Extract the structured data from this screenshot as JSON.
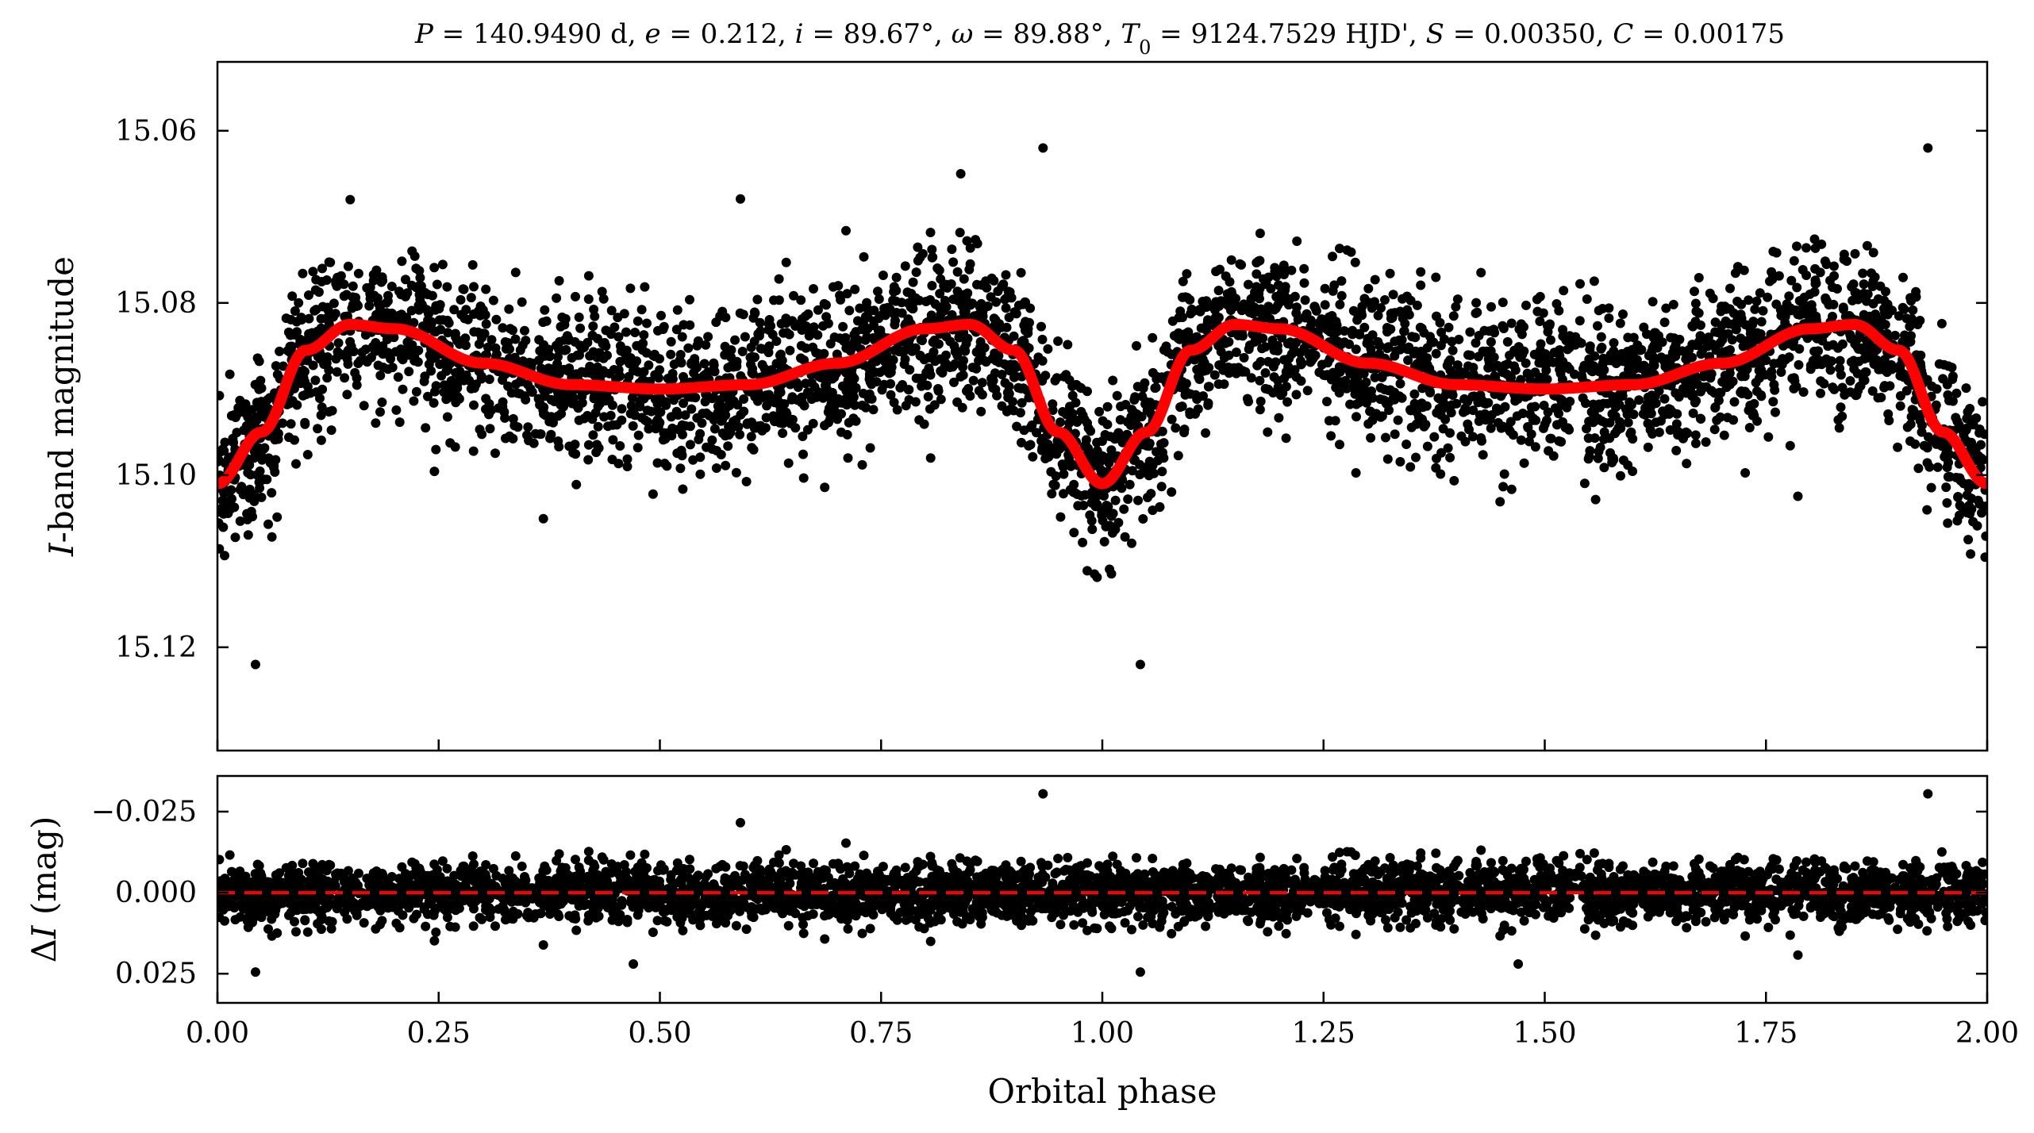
{
  "chart_data": [
    {
      "type": "scatter",
      "panel": "upper",
      "title": "P = 140.9490 d, e = 0.212, i = 89.67°, ω = 89.88°, T0 = 9124.7529 HJD', S = 0.00350, C = 0.00175",
      "title_parts": [
        {
          "text": "P",
          "style": "italic"
        },
        {
          "text": " = 140.9490 d, "
        },
        {
          "text": "e",
          "style": "italic"
        },
        {
          "text": " = 0.212, "
        },
        {
          "text": "i",
          "style": "italic"
        },
        {
          "text": " = 89.67°, "
        },
        {
          "text": "ω",
          "style": "italic"
        },
        {
          "text": " = 89.88°, "
        },
        {
          "text": "T",
          "style": "italic"
        },
        {
          "text": "0",
          "baseline": "sub"
        },
        {
          "text": " = 9124.7529 HJD', "
        },
        {
          "text": "S",
          "style": "italic"
        },
        {
          "text": " = 0.00350, "
        },
        {
          "text": "C",
          "style": "italic"
        },
        {
          "text": " = 0.00175"
        }
      ],
      "xlabel": "",
      "ylabel": "I-band magnitude",
      "ylabel_italic": "I",
      "ylabel_rest": "-band magnitude",
      "xlim": [
        0.0,
        2.0
      ],
      "ylim": [
        15.132,
        15.052
      ],
      "y_inverted": true,
      "yticks": [
        15.06,
        15.08,
        15.1,
        15.12
      ],
      "ytick_labels": [
        "15.06",
        "15.08",
        "15.10",
        "15.12"
      ],
      "xticks": [
        0.0,
        0.25,
        0.5,
        0.75,
        1.0,
        1.25,
        1.5,
        1.75,
        2.0
      ],
      "grid": false,
      "series": [
        {
          "kind": "points",
          "color": "#000000",
          "point_count": 4200,
          "baseline_mean": 15.088,
          "scatter_sd": 0.0045,
          "notable_points": [
            {
              "x": 0.933,
              "y": 15.062
            },
            {
              "x": 1.933,
              "y": 15.062
            },
            {
              "x": 0.043,
              "y": 15.122
            },
            {
              "x": 1.043,
              "y": 15.122
            },
            {
              "x": 0.15,
              "y": 15.068
            },
            {
              "x": 0.84,
              "y": 15.065
            }
          ]
        },
        {
          "kind": "model",
          "color": "#ff0000",
          "line": "solid",
          "x": [
            0.0,
            0.05,
            0.1,
            0.15,
            0.2,
            0.3,
            0.4,
            0.5,
            0.6,
            0.7,
            0.8,
            0.85,
            0.9,
            0.95,
            1.0,
            1.05,
            1.1,
            1.15,
            1.2,
            1.3,
            1.4,
            1.5,
            1.6,
            1.7,
            1.8,
            1.85,
            1.9,
            1.95,
            2.0
          ],
          "y": [
            15.101,
            15.095,
            15.0855,
            15.0825,
            15.083,
            15.087,
            15.0895,
            15.09,
            15.0895,
            15.087,
            15.083,
            15.0825,
            15.0855,
            15.095,
            15.101,
            15.095,
            15.0855,
            15.0825,
            15.083,
            15.087,
            15.0895,
            15.09,
            15.0895,
            15.087,
            15.083,
            15.0825,
            15.0855,
            15.095,
            15.101
          ]
        }
      ]
    },
    {
      "type": "scatter",
      "panel": "lower",
      "xlabel": "Orbital phase",
      "ylabel": "ΔI (mag)",
      "ylabel_delta": "Δ",
      "ylabel_italic": "I",
      "ylabel_rest": " (mag)",
      "xlim": [
        0.0,
        2.0
      ],
      "ylim": [
        0.034,
        -0.036
      ],
      "y_inverted": true,
      "yticks": [
        -0.025,
        0.0,
        0.025
      ],
      "ytick_labels": [
        "−0.025",
        "0.000",
        "0.025"
      ],
      "xticks": [
        0.0,
        0.25,
        0.5,
        0.75,
        1.0,
        1.25,
        1.5,
        1.75,
        2.0
      ],
      "xtick_labels": [
        "0.00",
        "0.25",
        "0.50",
        "0.75",
        "1.00",
        "1.25",
        "1.50",
        "1.75",
        "2.00"
      ],
      "grid": false,
      "series": [
        {
          "kind": "points",
          "color": "#000000",
          "point_count": 4200,
          "mean": 0.0,
          "scatter_sd": 0.0045,
          "notable_points": [
            {
              "x": 0.933,
              "y": -0.0305
            },
            {
              "x": 1.933,
              "y": -0.0305
            },
            {
              "x": 0.043,
              "y": 0.0245
            },
            {
              "x": 1.043,
              "y": 0.0245
            },
            {
              "x": 0.47,
              "y": 0.022
            },
            {
              "x": 1.47,
              "y": 0.022
            }
          ]
        },
        {
          "kind": "reference",
          "color": "#ff0000",
          "line": "dashed",
          "y": 0.0
        }
      ]
    }
  ]
}
